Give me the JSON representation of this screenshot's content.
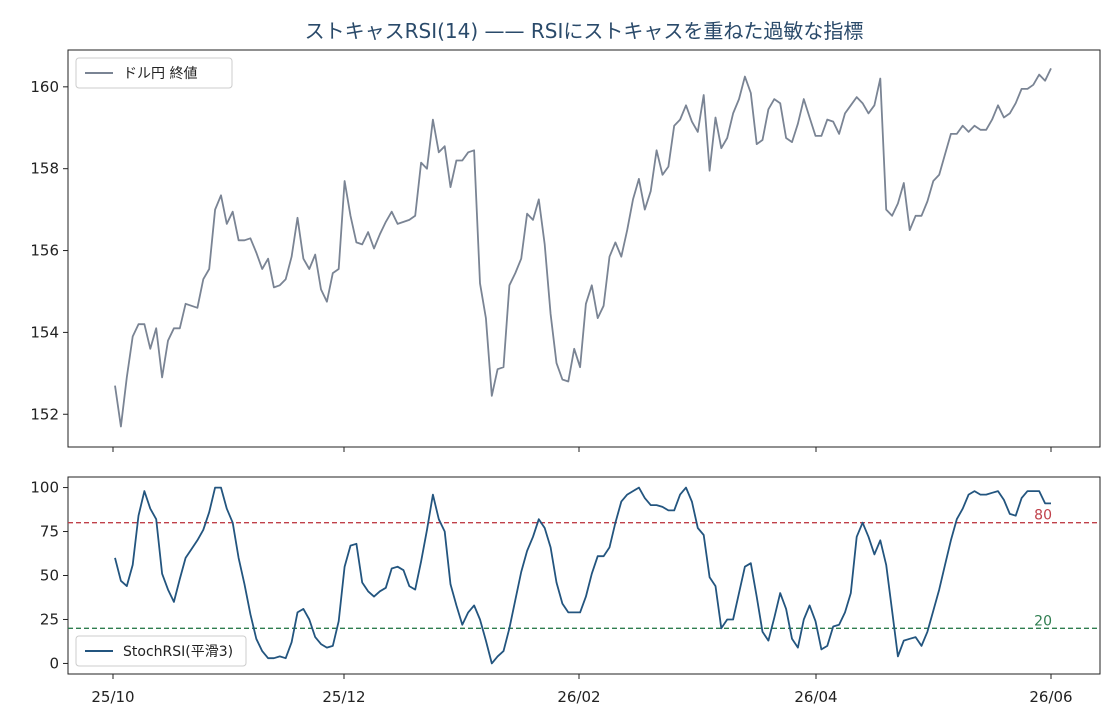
{
  "title": "ストキャスRSI(14) —— RSIにストキャスを重ねた過敏な指標",
  "chart_data": [
    {
      "type": "line",
      "legend_position": "top-left",
      "series": [
        {
          "name": "ドル円 終値",
          "color": "#7a8494",
          "values": [
            152.7,
            151.7,
            152.9,
            153.9,
            154.2,
            154.2,
            153.6,
            154.1,
            152.9,
            153.8,
            154.1,
            154.1,
            154.7,
            154.65,
            154.6,
            155.3,
            155.55,
            157.0,
            157.35,
            156.65,
            156.95,
            156.25,
            156.25,
            156.3,
            155.95,
            155.55,
            155.8,
            155.1,
            155.15,
            155.3,
            155.85,
            156.8,
            155.8,
            155.55,
            155.9,
            155.05,
            154.75,
            155.45,
            155.55,
            157.7,
            156.85,
            156.2,
            156.15,
            156.45,
            156.05,
            156.4,
            156.7,
            156.95,
            156.65,
            156.7,
            156.75,
            156.85,
            158.15,
            158.0,
            159.2,
            158.4,
            158.55,
            157.55,
            158.2,
            158.2,
            158.4,
            158.45,
            155.2,
            154.35,
            152.45,
            153.1,
            153.15,
            155.15,
            155.45,
            155.8,
            156.9,
            156.75,
            157.25,
            156.15,
            154.45,
            153.25,
            152.85,
            152.8,
            153.6,
            153.15,
            154.7,
            155.15,
            154.35,
            154.65,
            155.85,
            156.2,
            155.85,
            156.5,
            157.25,
            157.75,
            157.0,
            157.45,
            158.45,
            157.85,
            158.05,
            159.05,
            159.2,
            159.55,
            159.15,
            158.9,
            159.8,
            157.95,
            159.25,
            158.5,
            158.75,
            159.35,
            159.7,
            160.25,
            159.85,
            158.6,
            158.7,
            159.45,
            159.7,
            159.6,
            158.75,
            158.65,
            159.1,
            159.7,
            159.25,
            158.8,
            158.8,
            159.2,
            159.15,
            158.85,
            159.35,
            159.55,
            159.75,
            159.6,
            159.35,
            159.55,
            160.2,
            157.0,
            156.85,
            157.15,
            157.65,
            156.5,
            156.85,
            156.85,
            157.2,
            157.7,
            157.85,
            158.35,
            158.85,
            158.85,
            159.05,
            158.9,
            159.05,
            158.95,
            158.95,
            159.2,
            159.55,
            159.25,
            159.35,
            159.6,
            159.95,
            159.95,
            160.05,
            160.3,
            160.15,
            160.45
          ]
        }
      ],
      "ylim": [
        151.2,
        160.9
      ],
      "yticks": [
        "152",
        "154",
        "156",
        "158",
        "160"
      ],
      "xticks": [
        "25/10",
        "25/12",
        "26/02",
        "26/04",
        "26/06"
      ]
    },
    {
      "type": "line",
      "legend_position": "bottom-left",
      "series": [
        {
          "name": "StochRSI(平滑3)",
          "color": "#23557f",
          "values": [
            60,
            47,
            44,
            56,
            84,
            98,
            88,
            82,
            51,
            42,
            35,
            48,
            60,
            65,
            70,
            76,
            86,
            100,
            100,
            88,
            80,
            60,
            45,
            28,
            14,
            7,
            3,
            3,
            4,
            3,
            12,
            29,
            31,
            25,
            15,
            11,
            9,
            10,
            24,
            55,
            67,
            68,
            46,
            41,
            38,
            41,
            43,
            54,
            55,
            53,
            44,
            42,
            58,
            76,
            96,
            82,
            75,
            45,
            33,
            22,
            29,
            33,
            25,
            13,
            0,
            4,
            7,
            20,
            36,
            52,
            64,
            72,
            82,
            77,
            66,
            46,
            34,
            29,
            29,
            29,
            38,
            51,
            61,
            61,
            66,
            80,
            92,
            96,
            98,
            100,
            94,
            90,
            90,
            89,
            87,
            87,
            96,
            100,
            92,
            77,
            73,
            49,
            44,
            20,
            25,
            25,
            40,
            55,
            57,
            38,
            18,
            13,
            26,
            40,
            31,
            14,
            9,
            25,
            33,
            24,
            8,
            10,
            21,
            22,
            29,
            40,
            72,
            80,
            72,
            62,
            70,
            56,
            30,
            4,
            13,
            14,
            15,
            10,
            18,
            30,
            42,
            56,
            70,
            82,
            88,
            96,
            98,
            96,
            96,
            97,
            98,
            93,
            85,
            84,
            94,
            98,
            98,
            98,
            91,
            91
          ]
        }
      ],
      "ylim": [
        -6,
        106
      ],
      "yticks": [
        "0",
        "25",
        "50",
        "75",
        "100"
      ],
      "reference_lines": [
        {
          "label": "80",
          "value": 80,
          "color": "#c0404a"
        },
        {
          "label": "20",
          "value": 20,
          "color": "#2e7d4f"
        }
      ],
      "xticks": [
        "25/10",
        "25/12",
        "26/02",
        "26/04",
        "26/06"
      ]
    }
  ]
}
